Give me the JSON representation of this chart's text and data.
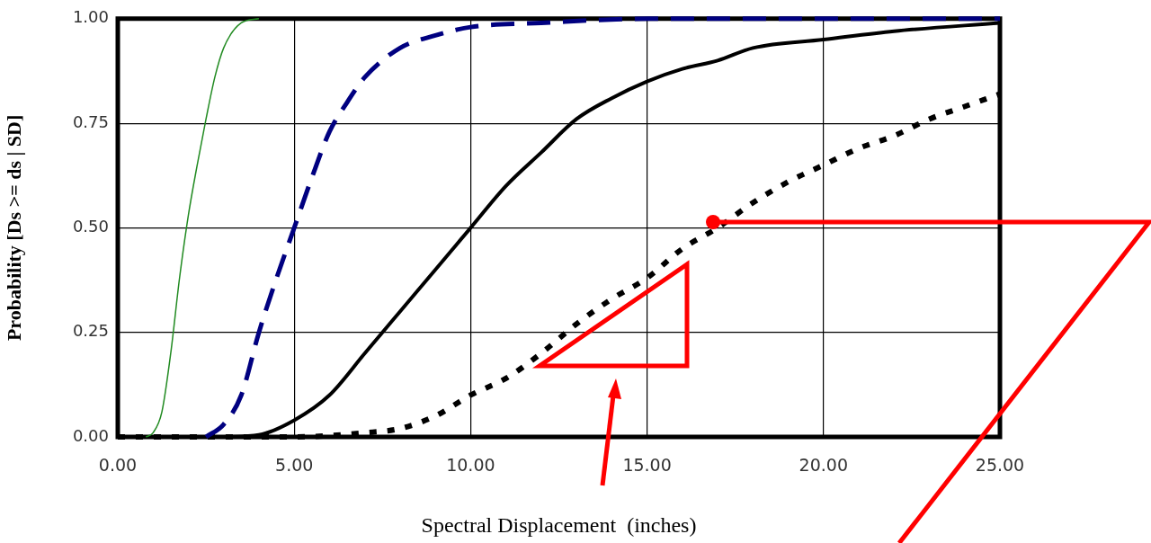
{
  "chart_data": {
    "type": "line",
    "xlabel": "Spectral Displacement  (inches)",
    "ylabel": "Probability [Ds >= ds | SD]",
    "xlim": [
      0,
      25
    ],
    "xticks": [
      {
        "value": 0,
        "label": "0.00"
      },
      {
        "value": 5,
        "label": "5.00"
      },
      {
        "value": 10,
        "label": "10.00"
      },
      {
        "value": 15,
        "label": "15.00"
      },
      {
        "value": 20,
        "label": "20.00"
      },
      {
        "value": 25,
        "label": "25.00"
      }
    ],
    "ylim": [
      0,
      1
    ],
    "yticks": [
      {
        "value": 0,
        "label": "0.00"
      },
      {
        "value": 0.25,
        "label": "0.25"
      },
      {
        "value": 0.5,
        "label": "0.50"
      },
      {
        "value": 0.75,
        "label": "0.75"
      },
      {
        "value": 1,
        "label": "1.00"
      }
    ],
    "grid": true,
    "legend": false,
    "marker": "none",
    "series": [
      {
        "color": "#228b22",
        "line_style": "solid",
        "x": [
          0.8,
          1.0,
          1.25,
          1.5,
          1.75,
          2.0,
          2.25,
          2.5,
          2.75,
          3.0,
          3.5,
          4.0
        ],
        "values": [
          0,
          0.01,
          0.06,
          0.2,
          0.38,
          0.53,
          0.65,
          0.76,
          0.86,
          0.93,
          0.99,
          1.0
        ]
      },
      {
        "color": "#000080",
        "line_style": "dashed",
        "x": [
          2.5,
          3.0,
          3.5,
          4.0,
          4.5,
          5.0,
          5.5,
          6.0,
          6.5,
          7.0,
          8.0,
          9.0,
          10,
          12,
          15,
          25
        ],
        "values": [
          0,
          0.03,
          0.1,
          0.25,
          0.38,
          0.5,
          0.62,
          0.73,
          0.8,
          0.86,
          0.93,
          0.96,
          0.98,
          0.99,
          1.0,
          1.0
        ]
      },
      {
        "color": "#000000",
        "line_style": "solid",
        "x": [
          3,
          4,
          5,
          6,
          7,
          7.5,
          8,
          9,
          10,
          11,
          12,
          13,
          14,
          15,
          16,
          17,
          18,
          20,
          22,
          25
        ],
        "values": [
          0,
          0.005,
          0.04,
          0.1,
          0.2,
          0.25,
          0.3,
          0.4,
          0.5,
          0.6,
          0.68,
          0.76,
          0.81,
          0.85,
          0.88,
          0.9,
          0.93,
          0.95,
          0.97,
          0.99
        ]
      },
      {
        "color": "#000000",
        "line_style": "dotted",
        "x": [
          0,
          5,
          7,
          8,
          9,
          10,
          11,
          12,
          13,
          14,
          15,
          16,
          17,
          18,
          19,
          20,
          21,
          22,
          23,
          24,
          25
        ],
        "values": [
          0,
          0,
          0.01,
          0.02,
          0.05,
          0.1,
          0.14,
          0.2,
          0.27,
          0.33,
          0.38,
          0.45,
          0.5,
          0.56,
          0.61,
          0.65,
          0.69,
          0.72,
          0.76,
          0.79,
          0.82
        ]
      }
    ]
  }
}
